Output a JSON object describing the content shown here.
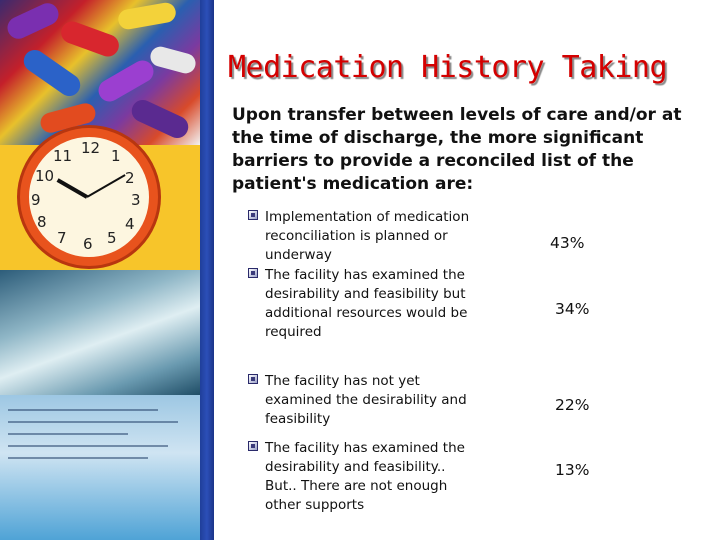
{
  "slide": {
    "title": "Medication History Taking",
    "intro": "Upon transfer between levels of care and/or at the time of discharge, the more significant barriers to provide a reconciled list of the patient's medication are:",
    "items": [
      {
        "text": "Implementation of medication reconciliation is planned or underway",
        "percent": "43%"
      },
      {
        "text": "The facility has examined the desirability and feasibility but additional resources would be required",
        "percent": "34%"
      },
      {
        "text": "The facility has not yet examined the desirability and feasibility",
        "percent": "22%"
      },
      {
        "text": "The facility has examined the desirability and feasibility.. But.. There are not enough other supports",
        "percent": "13%"
      }
    ]
  },
  "colors": {
    "title": "#d40000",
    "accent_bar": "#2c4fb8",
    "text": "#111111"
  },
  "decorations": {
    "left_column": [
      "pills-photo",
      "clock-photo",
      "lab-photo",
      "form-photo"
    ],
    "clock_numbers": [
      "12",
      "1",
      "2",
      "3",
      "4",
      "5",
      "6",
      "7",
      "8",
      "9",
      "10",
      "11"
    ]
  }
}
